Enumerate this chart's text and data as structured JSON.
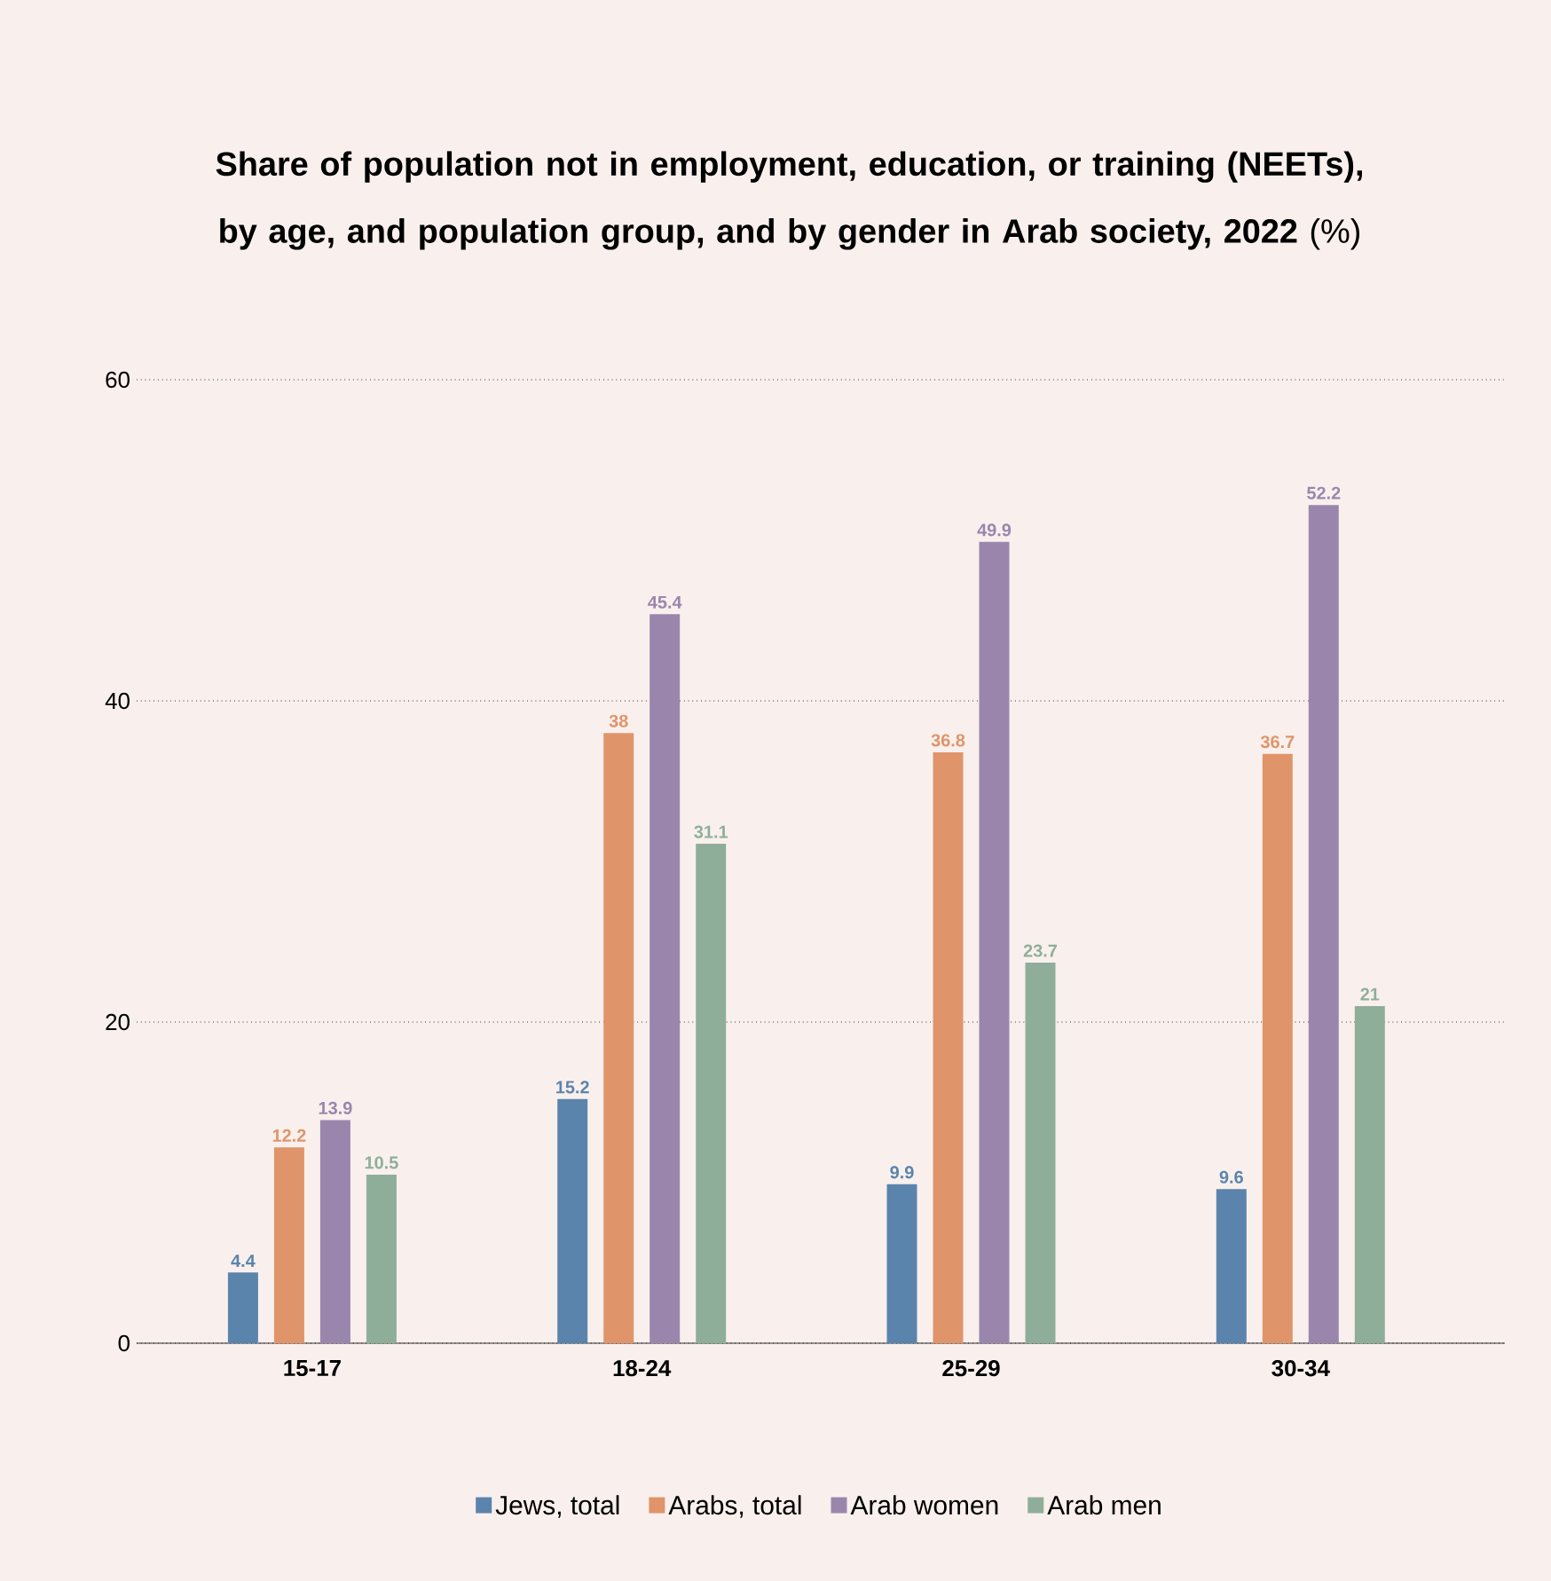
{
  "chart_data": {
    "type": "bar",
    "title": "**Share of population not in employment, education, or training (NEETs), by age, and population group, and by gender in Arab society, 2022** (%)",
    "categories": [
      "15-17",
      "18-24",
      "25-29",
      "30-34"
    ],
    "series": [
      {
        "name": "Jews, total",
        "color": "#5b84ad",
        "values": [
          4.4,
          15.2,
          9.9,
          9.6
        ]
      },
      {
        "name": "Arabs, total",
        "color": "#e0946a",
        "values": [
          12.2,
          38,
          36.8,
          36.7
        ]
      },
      {
        "name": "Arab women",
        "color": "#9a86ad",
        "values": [
          13.9,
          45.4,
          49.9,
          52.2
        ]
      },
      {
        "name": "Arab men",
        "color": "#8fae9a",
        "values": [
          10.5,
          31.1,
          23.7,
          21
        ]
      }
    ],
    "ylim": [
      0,
      60
    ],
    "yticks": [
      0,
      20,
      40,
      60
    ],
    "grid": "y",
    "legend": "bottom",
    "data_labels": true
  }
}
